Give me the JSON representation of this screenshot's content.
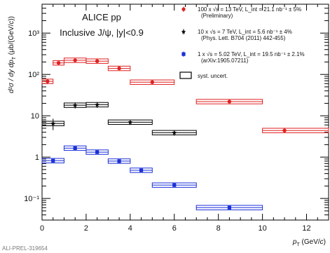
{
  "chart_data": {
    "type": "scatter",
    "title": "ALICE pp",
    "subtitle": "Inclusive J/ψ, |y|<0.9",
    "xlabel": "p_T (GeV/c)",
    "ylabel": "d²σ/dy dp_T (μb/(GeV/c))",
    "xlim": [
      0,
      13
    ],
    "ylim": [
      0.03,
      5000
    ],
    "yscale": "log",
    "x_ticks": [
      "0",
      "2",
      "4",
      "6",
      "8",
      "10",
      "12"
    ],
    "y_ticks": [
      "10⁻¹",
      "1",
      "10",
      "10²",
      "10³"
    ],
    "series": [
      {
        "name": "100 x √s = 13 TeV, L_int = 21.1 nb⁻¹ ± 5%",
        "note": "(Preliminary)",
        "scale_factor": 100,
        "color": "#e02020",
        "marker": "circle",
        "points": [
          {
            "x": 0.25,
            "x_low": 0.0,
            "x_high": 0.5,
            "y": 68,
            "err": 10
          },
          {
            "x": 0.75,
            "x_low": 0.5,
            "x_high": 1.0,
            "y": 190,
            "err": 12
          },
          {
            "x": 1.5,
            "x_low": 1.0,
            "x_high": 2.0,
            "y": 220,
            "err": 10
          },
          {
            "x": 2.5,
            "x_low": 2.0,
            "x_high": 3.0,
            "y": 210,
            "err": 10
          },
          {
            "x": 3.5,
            "x_low": 3.0,
            "x_high": 4.0,
            "y": 140,
            "err": 8
          },
          {
            "x": 5.0,
            "x_low": 4.0,
            "x_high": 6.0,
            "y": 65,
            "err": 4
          },
          {
            "x": 8.5,
            "x_low": 7.0,
            "x_high": 10.0,
            "y": 22,
            "err": 1.5
          },
          {
            "x": 11.0,
            "x_low": 10.0,
            "x_high": 13.0,
            "y": 4.4,
            "err": 0.6
          }
        ]
      },
      {
        "name": "10 x √s = 7 TeV, L_int = 5.6 nb⁻¹ ± 4%",
        "note": "(Phys. Lett. B704 (2011) 442-455)",
        "scale_factor": 10,
        "color": "#000000",
        "marker": "star",
        "points": [
          {
            "x": 0.5,
            "x_low": 0.0,
            "x_high": 1.0,
            "y": 6.5,
            "err": 2.0
          },
          {
            "x": 1.5,
            "x_low": 1.0,
            "x_high": 2.0,
            "y": 18,
            "err": 3
          },
          {
            "x": 2.5,
            "x_low": 2.0,
            "x_high": 3.0,
            "y": 18.5,
            "err": 3
          },
          {
            "x": 4.0,
            "x_low": 3.0,
            "x_high": 5.0,
            "y": 7.0,
            "err": 1.0
          },
          {
            "x": 6.0,
            "x_low": 5.0,
            "x_high": 7.0,
            "y": 3.9,
            "err": 0.6
          }
        ]
      },
      {
        "name": "1 x √s = 5.02 TeV, L_int = 19.5 nb⁻¹ ± 2.1%",
        "note": "(arXiv:1905.07211)",
        "scale_factor": 1,
        "color": "#1a2fd8",
        "marker": "square",
        "points": [
          {
            "x": 0.5,
            "x_low": 0.0,
            "x_high": 1.0,
            "y": 0.82,
            "err": 0.06
          },
          {
            "x": 1.5,
            "x_low": 1.0,
            "x_high": 2.0,
            "y": 1.65,
            "err": 0.08
          },
          {
            "x": 2.5,
            "x_low": 2.0,
            "x_high": 3.0,
            "y": 1.32,
            "err": 0.07
          },
          {
            "x": 3.5,
            "x_low": 3.0,
            "x_high": 4.0,
            "y": 0.8,
            "err": 0.05
          },
          {
            "x": 4.5,
            "x_low": 4.0,
            "x_high": 5.0,
            "y": 0.48,
            "err": 0.03
          },
          {
            "x": 6.0,
            "x_low": 5.0,
            "x_high": 7.0,
            "y": 0.21,
            "err": 0.015
          },
          {
            "x": 8.5,
            "x_low": 7.0,
            "x_high": 10.0,
            "y": 0.06,
            "err": 0.006
          }
        ]
      }
    ],
    "legend": {
      "placement": "top-right",
      "box_entry": "syst. uncert."
    }
  },
  "watermark": "ALI-PREL-319654"
}
